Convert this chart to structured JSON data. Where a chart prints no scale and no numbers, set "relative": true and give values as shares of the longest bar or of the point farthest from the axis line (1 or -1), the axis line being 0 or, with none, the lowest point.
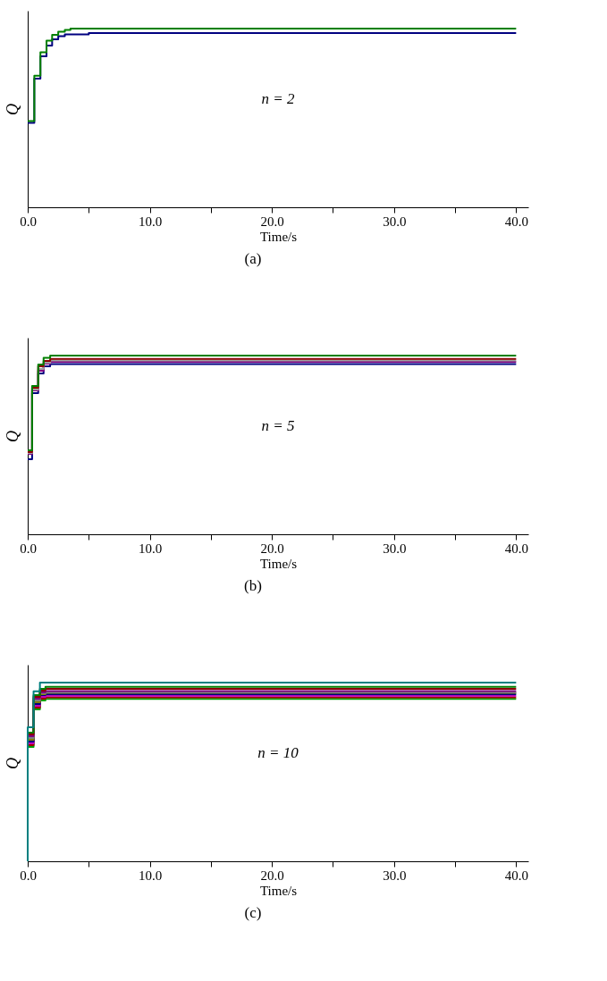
{
  "chart_data": [
    {
      "type": "step",
      "relative": true,
      "xlabel": "Time/s",
      "ylabel": "Q",
      "annotations": [
        "n = 2",
        "(a)"
      ],
      "grid": false,
      "marker": "none",
      "line_style": "solid",
      "tick_labels": "x",
      "xlim": [
        0,
        41
      ],
      "xticks": [
        {
          "value": 0,
          "label": "0.0"
        },
        {
          "value": 5,
          "label": null
        },
        {
          "value": 10,
          "label": "10.0"
        },
        {
          "value": 15,
          "label": null
        },
        {
          "value": 20,
          "label": "20.0"
        },
        {
          "value": 25,
          "label": null
        },
        {
          "value": 30,
          "label": "30.0"
        },
        {
          "value": 35,
          "label": null
        },
        {
          "value": 40,
          "label": "40.0"
        }
      ],
      "series": [
        {
          "color": "#000080",
          "x": [
            0,
            0.54,
            1.04,
            1.54,
            2.0,
            2.5,
            3.04,
            5.0,
            40
          ],
          "values": [
            0.473,
            0.72,
            0.845,
            0.905,
            0.94,
            0.958,
            0.968,
            0.975,
            0.975
          ]
        },
        {
          "color": "#008000",
          "x": [
            0,
            0.54,
            1.04,
            1.54,
            2.0,
            2.5,
            3.04,
            3.5,
            40
          ],
          "values": [
            0.482,
            0.736,
            0.867,
            0.933,
            0.965,
            0.982,
            0.993,
            1.0,
            1.0
          ]
        }
      ]
    },
    {
      "type": "step",
      "relative": true,
      "xlabel": "Time/s",
      "ylabel": "Q",
      "annotations": [
        "n = 5",
        "(b)"
      ],
      "grid": false,
      "marker": "none",
      "line_style": "solid",
      "tick_labels": "x",
      "xlim": [
        0,
        41
      ],
      "xticks": [
        {
          "value": 0,
          "label": "0.0"
        },
        {
          "value": 5,
          "label": null
        },
        {
          "value": 10,
          "label": "10.0"
        },
        {
          "value": 15,
          "label": null
        },
        {
          "value": 20,
          "label": "20.0"
        },
        {
          "value": 25,
          "label": null
        },
        {
          "value": 30,
          "label": "30.0"
        },
        {
          "value": 35,
          "label": null
        },
        {
          "value": 40,
          "label": "40.0"
        }
      ],
      "series": [
        {
          "color": "#000080",
          "x": [
            0,
            0.36,
            0.86,
            1.3,
            1.84,
            40
          ],
          "values": [
            0.42,
            0.79,
            0.9,
            0.94,
            0.952,
            0.952
          ]
        },
        {
          "color": "#800080",
          "x": [
            0,
            0.36,
            0.86,
            1.3,
            1.84,
            40
          ],
          "values": [
            0.45,
            0.805,
            0.915,
            0.955,
            0.965,
            0.965
          ]
        },
        {
          "color": "#a0a0a0",
          "x": [
            0,
            0.36,
            0.86,
            1.3,
            1.84,
            40
          ],
          "values": [
            0.455,
            0.81,
            0.925,
            0.96,
            0.972,
            0.972
          ]
        },
        {
          "color": "#8b0000",
          "x": [
            0,
            0.36,
            0.86,
            1.3,
            1.84,
            40
          ],
          "values": [
            0.46,
            0.82,
            0.94,
            0.97,
            0.981,
            0.981
          ]
        },
        {
          "color": "#008000",
          "x": [
            0,
            0.36,
            0.86,
            1.3,
            1.84,
            40
          ],
          "values": [
            0.47,
            0.83,
            0.95,
            0.987,
            1.0,
            1.0
          ]
        }
      ]
    },
    {
      "type": "step",
      "relative": true,
      "xlabel": "Time/s",
      "ylabel": "Q",
      "annotations": [
        "n = 10",
        "(c)"
      ],
      "grid": false,
      "marker": "none",
      "line_style": "solid",
      "tick_labels": "x",
      "xlim": [
        0,
        41
      ],
      "xticks": [
        {
          "value": 0,
          "label": "0.0"
        },
        {
          "value": 5,
          "label": null
        },
        {
          "value": 10,
          "label": "10.0"
        },
        {
          "value": 15,
          "label": null
        },
        {
          "value": 20,
          "label": "20.0"
        },
        {
          "value": 25,
          "label": null
        },
        {
          "value": 30,
          "label": "30.0"
        },
        {
          "value": 35,
          "label": null
        },
        {
          "value": 40,
          "label": "40.0"
        }
      ],
      "series": [
        {
          "color": "#00a000",
          "x": [
            0,
            0,
            0.48,
            1.0,
            1.45,
            40
          ],
          "values": [
            0,
            0.64,
            0.85,
            0.9,
            0.909,
            0.909
          ]
        },
        {
          "color": "#a00000",
          "x": [
            0,
            0,
            0.48,
            1.0,
            1.45,
            40
          ],
          "values": [
            0,
            0.65,
            0.86,
            0.91,
            0.917,
            0.917
          ]
        },
        {
          "color": "#c000c0",
          "x": [
            0,
            0,
            0.48,
            1.0,
            1.45,
            40
          ],
          "values": [
            0,
            0.66,
            0.87,
            0.92,
            0.926,
            0.926
          ]
        },
        {
          "color": "#000080",
          "x": [
            0,
            0,
            0.48,
            1.0,
            1.45,
            40
          ],
          "values": [
            0,
            0.67,
            0.88,
            0.93,
            0.935,
            0.935
          ]
        },
        {
          "color": "#808000",
          "x": [
            0,
            0,
            0.48,
            1.0,
            1.45,
            40
          ],
          "values": [
            0,
            0.68,
            0.89,
            0.935,
            0.942,
            0.942
          ]
        },
        {
          "color": "#808080",
          "x": [
            0,
            0,
            0.48,
            1.0,
            1.45,
            40
          ],
          "values": [
            0,
            0.69,
            0.9,
            0.94,
            0.945,
            0.945
          ]
        },
        {
          "color": "#800080",
          "x": [
            0,
            0,
            0.48,
            1.0,
            1.45,
            40
          ],
          "values": [
            0,
            0.7,
            0.91,
            0.945,
            0.953,
            0.953
          ]
        },
        {
          "color": "#8b0000",
          "x": [
            0,
            0,
            0.48,
            1.0,
            1.45,
            40
          ],
          "values": [
            0,
            0.71,
            0.92,
            0.955,
            0.965,
            0.965
          ]
        },
        {
          "color": "#008000",
          "x": [
            0,
            0,
            0.48,
            1.0,
            1.45,
            40
          ],
          "values": [
            0,
            0.72,
            0.93,
            0.965,
            0.976,
            0.976
          ]
        },
        {
          "color": "#008080",
          "x": [
            0,
            0,
            0.48,
            1.0,
            40
          ],
          "values": [
            0,
            0.75,
            0.951,
            1.0,
            1.0
          ]
        }
      ]
    }
  ]
}
